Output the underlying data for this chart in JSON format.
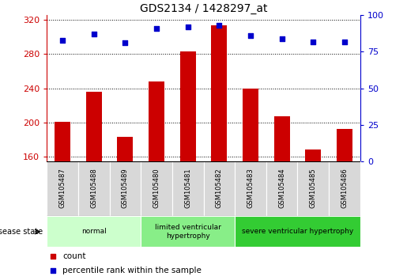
{
  "title": "GDS2134 / 1428297_at",
  "samples": [
    "GSM105487",
    "GSM105488",
    "GSM105489",
    "GSM105480",
    "GSM105481",
    "GSM105482",
    "GSM105483",
    "GSM105484",
    "GSM105485",
    "GSM105486"
  ],
  "count_values": [
    201,
    236,
    183,
    248,
    283,
    313,
    240,
    207,
    168,
    192
  ],
  "percentile_values": [
    83,
    87,
    81,
    91,
    92,
    93,
    86,
    84,
    82,
    82
  ],
  "ylim_left": [
    155,
    325
  ],
  "ylim_right": [
    0,
    100
  ],
  "yticks_left": [
    160,
    200,
    240,
    280,
    320
  ],
  "yticks_right": [
    0,
    25,
    50,
    75,
    100
  ],
  "bar_color": "#cc0000",
  "scatter_color": "#0000cc",
  "groups": [
    {
      "label": "normal",
      "start": 0,
      "end": 3,
      "color": "#ccffcc"
    },
    {
      "label": "limited ventricular\nhypertrophy",
      "start": 3,
      "end": 6,
      "color": "#88ee88"
    },
    {
      "label": "severe ventricular hypertrophy",
      "start": 6,
      "end": 10,
      "color": "#33cc33"
    }
  ],
  "disease_state_label": "disease state",
  "legend_count_label": "count",
  "legend_pct_label": "percentile rank within the sample",
  "left_axis_color": "#cc0000",
  "right_axis_color": "#0000cc"
}
